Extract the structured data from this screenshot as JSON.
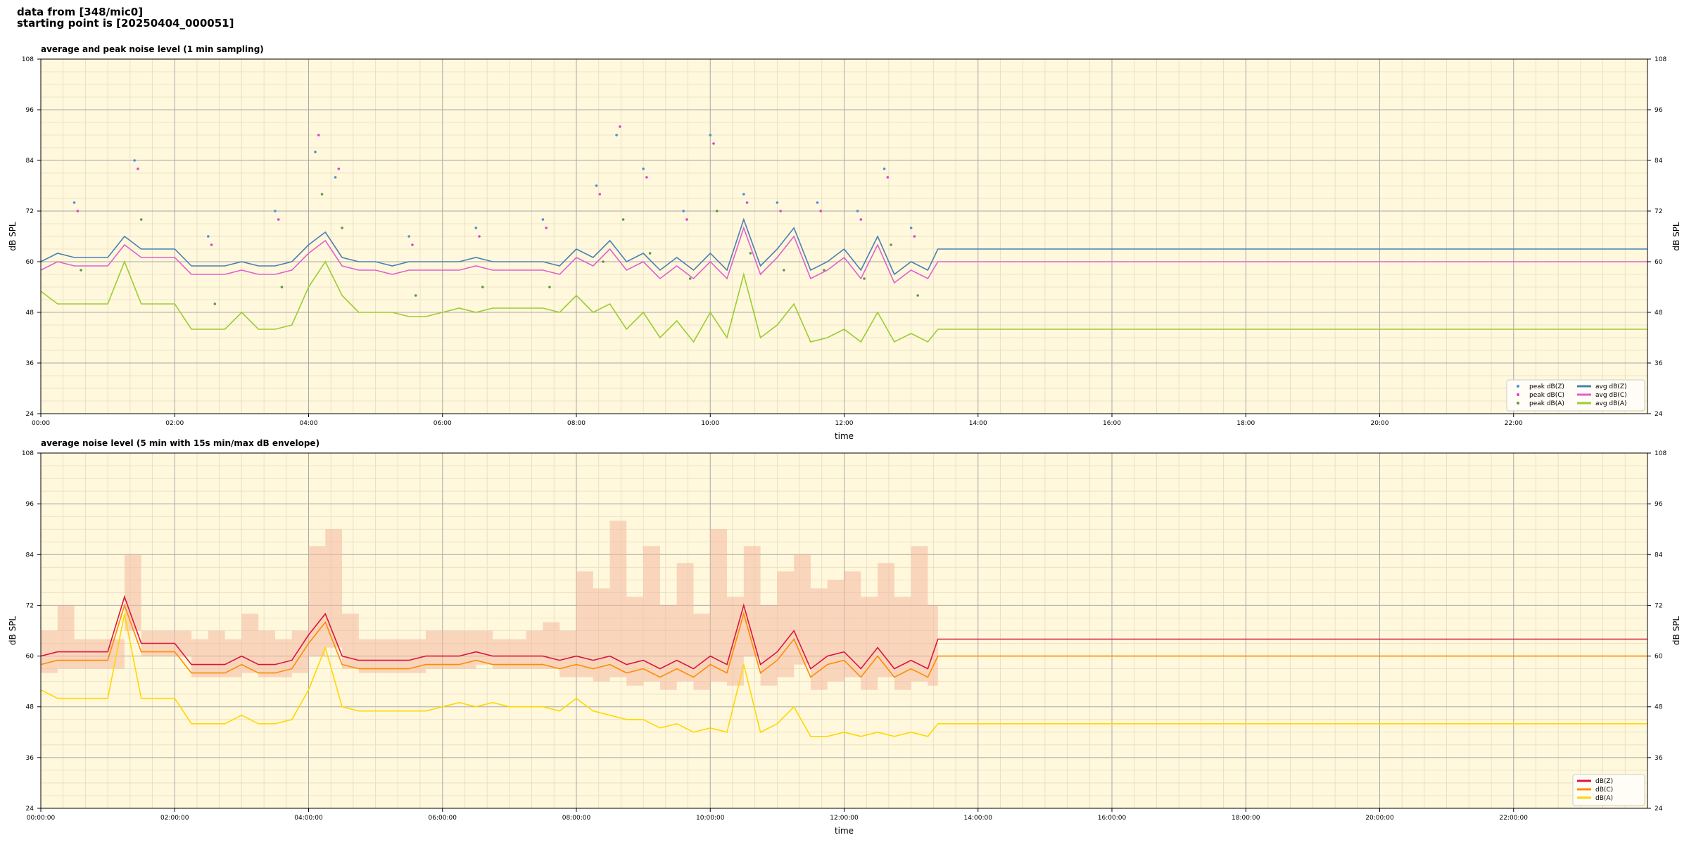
{
  "header": {
    "lines": [
      "data from [348/mic0]",
      "starting point is [20250404_000051]"
    ]
  },
  "chart_data": [
    {
      "type": "line",
      "title": "average and peak noise level (1 min sampling)",
      "x_label": "time",
      "y_label": "dB SPL",
      "y2_label": "dB SPL",
      "background": "#fff8dc",
      "grid": true,
      "minor_grid": true,
      "legend": "lower right",
      "legend_columns": 2,
      "xlim": [
        0,
        24
      ],
      "ylim": [
        24,
        108
      ],
      "y2lim": [
        24,
        108
      ],
      "xticks": [
        {
          "value": 0,
          "label": "00:00"
        },
        {
          "value": 2,
          "label": "02:00"
        },
        {
          "value": 4,
          "label": "04:00"
        },
        {
          "value": 6,
          "label": "06:00"
        },
        {
          "value": 8,
          "label": "08:00"
        },
        {
          "value": 10,
          "label": "10:00"
        },
        {
          "value": 12,
          "label": "12:00"
        },
        {
          "value": 14,
          "label": "14:00"
        },
        {
          "value": 16,
          "label": "16:00"
        },
        {
          "value": 18,
          "label": "18:00"
        },
        {
          "value": 20,
          "label": "20:00"
        },
        {
          "value": 22,
          "label": "22:00"
        }
      ],
      "yticks": [
        24,
        36,
        48,
        60,
        72,
        84,
        96,
        108
      ],
      "y2ticks": [
        24,
        36,
        48,
        60,
        72,
        84,
        96,
        108
      ],
      "x": [
        0,
        0.25,
        0.5,
        0.75,
        1,
        1.25,
        1.5,
        1.75,
        2,
        2.25,
        2.5,
        2.75,
        3,
        3.25,
        3.5,
        3.75,
        4,
        4.25,
        4.5,
        4.75,
        5,
        5.25,
        5.5,
        5.75,
        6,
        6.25,
        6.5,
        6.75,
        7,
        7.25,
        7.5,
        7.75,
        8,
        8.25,
        8.5,
        8.75,
        9,
        9.25,
        9.5,
        9.75,
        10,
        10.25,
        10.5,
        10.75,
        11,
        11.25,
        11.5,
        11.75,
        12,
        12.25,
        12.5,
        12.75,
        13,
        13.25,
        13.4,
        24
      ],
      "series": [
        {
          "name": "peak dB(Z)",
          "color": "#4a90d9",
          "style": "points",
          "x": [
            0.5,
            1.4,
            2.5,
            3.5,
            4.1,
            4.4,
            5.5,
            6.5,
            7.5,
            8.3,
            8.6,
            9.0,
            9.6,
            10.0,
            10.5,
            11.0,
            11.6,
            12.2,
            12.6,
            13.0
          ],
          "values": [
            74,
            84,
            66,
            72,
            86,
            80,
            66,
            68,
            70,
            78,
            90,
            82,
            72,
            90,
            76,
            74,
            74,
            72,
            82,
            68
          ]
        },
        {
          "name": "peak dB(C)",
          "color": "#e040d0",
          "style": "points",
          "x": [
            0.55,
            1.45,
            2.55,
            3.55,
            4.15,
            4.45,
            5.55,
            6.55,
            7.55,
            8.35,
            8.65,
            9.05,
            9.65,
            10.05,
            10.55,
            11.05,
            11.65,
            12.25,
            12.65,
            13.05
          ],
          "values": [
            72,
            82,
            64,
            70,
            90,
            82,
            64,
            66,
            68,
            76,
            92,
            80,
            70,
            88,
            74,
            72,
            72,
            70,
            80,
            66
          ]
        },
        {
          "name": "peak dB(A)",
          "color": "#5a9a40",
          "style": "points",
          "x": [
            0.6,
            1.5,
            2.6,
            3.6,
            4.2,
            4.5,
            5.6,
            6.6,
            7.6,
            8.4,
            8.7,
            9.1,
            9.7,
            10.1,
            10.6,
            11.1,
            11.7,
            12.3,
            12.7,
            13.1
          ],
          "values": [
            58,
            70,
            50,
            54,
            76,
            68,
            52,
            54,
            54,
            60,
            70,
            62,
            56,
            72,
            62,
            58,
            58,
            56,
            64,
            52
          ]
        },
        {
          "name": "avg dB(Z)",
          "color": "#4a7fb5",
          "style": "line",
          "values": [
            60,
            62,
            61,
            61,
            61,
            66,
            63,
            63,
            63,
            59,
            59,
            59,
            60,
            59,
            59,
            60,
            64,
            67,
            61,
            60,
            60,
            59,
            60,
            60,
            60,
            60,
            61,
            60,
            60,
            60,
            60,
            59,
            63,
            61,
            65,
            60,
            62,
            58,
            61,
            58,
            62,
            58,
            70,
            59,
            63,
            68,
            58,
            60,
            63,
            58,
            66,
            57,
            60,
            58,
            63,
            63
          ]
        },
        {
          "name": "avg dB(C)",
          "color": "#e060d0",
          "style": "line",
          "values": [
            58,
            60,
            59,
            59,
            59,
            64,
            61,
            61,
            61,
            57,
            57,
            57,
            58,
            57,
            57,
            58,
            62,
            65,
            59,
            58,
            58,
            57,
            58,
            58,
            58,
            58,
            59,
            58,
            58,
            58,
            58,
            57,
            61,
            59,
            63,
            58,
            60,
            56,
            59,
            56,
            60,
            56,
            68,
            57,
            61,
            66,
            56,
            58,
            61,
            56,
            64,
            55,
            58,
            56,
            60,
            60
          ]
        },
        {
          "name": "avg dB(A)",
          "color": "#9acd32",
          "style": "line",
          "values": [
            53,
            50,
            50,
            50,
            50,
            60,
            50,
            50,
            50,
            44,
            44,
            44,
            48,
            44,
            44,
            45,
            54,
            60,
            52,
            48,
            48,
            48,
            47,
            47,
            48,
            49,
            48,
            49,
            49,
            49,
            49,
            48,
            52,
            48,
            50,
            44,
            48,
            42,
            46,
            41,
            48,
            42,
            57,
            42,
            45,
            50,
            41,
            42,
            44,
            41,
            48,
            41,
            43,
            41,
            44,
            44
          ]
        }
      ]
    },
    {
      "type": "line",
      "title": "average noise level (5 min with 15s min/max dB envelope)",
      "x_label": "time",
      "y_label": "dB SPL",
      "y2_label": "dB SPL",
      "background": "#fff8dc",
      "grid": true,
      "minor_grid": true,
      "legend": "lower right",
      "legend_columns": 1,
      "xlim": [
        0,
        24
      ],
      "ylim": [
        24,
        108
      ],
      "y2lim": [
        24,
        108
      ],
      "xticks": [
        {
          "value": 0,
          "label": "00:00:00"
        },
        {
          "value": 2,
          "label": "02:00:00"
        },
        {
          "value": 4,
          "label": "04:00:00"
        },
        {
          "value": 6,
          "label": "06:00:00"
        },
        {
          "value": 8,
          "label": "08:00:00"
        },
        {
          "value": 10,
          "label": "10:00:00"
        },
        {
          "value": 12,
          "label": "12:00:00"
        },
        {
          "value": 14,
          "label": "14:00:00"
        },
        {
          "value": 16,
          "label": "16:00:00"
        },
        {
          "value": 18,
          "label": "18:00:00"
        },
        {
          "value": 20,
          "label": "20:00:00"
        },
        {
          "value": 22,
          "label": "22:00:00"
        }
      ],
      "yticks": [
        24,
        36,
        48,
        60,
        72,
        84,
        96,
        108
      ],
      "y2ticks": [
        24,
        36,
        48,
        60,
        72,
        84,
        96,
        108
      ],
      "x": [
        0,
        0.25,
        0.5,
        0.75,
        1,
        1.25,
        1.5,
        1.75,
        2,
        2.25,
        2.5,
        2.75,
        3,
        3.25,
        3.5,
        3.75,
        4,
        4.25,
        4.5,
        4.75,
        5,
        5.25,
        5.5,
        5.75,
        6,
        6.25,
        6.5,
        6.75,
        7,
        7.25,
        7.5,
        7.75,
        8,
        8.25,
        8.5,
        8.75,
        9,
        9.25,
        9.5,
        9.75,
        10,
        10.25,
        10.5,
        10.75,
        11,
        11.25,
        11.5,
        11.75,
        12,
        12.25,
        12.5,
        12.75,
        13,
        13.25,
        13.4,
        24
      ],
      "envelope": {
        "color": "#f4b8a0",
        "low": [
          56,
          57,
          57,
          57,
          57,
          66,
          60,
          60,
          60,
          55,
          55,
          55,
          56,
          55,
          55,
          56,
          60,
          62,
          57,
          56,
          56,
          56,
          56,
          57,
          57,
          57,
          58,
          57,
          57,
          57,
          57,
          55,
          55,
          54,
          55,
          53,
          54,
          52,
          54,
          52,
          54,
          53,
          60,
          53,
          55,
          58,
          52,
          54,
          55,
          52,
          55,
          52,
          54,
          53,
          null,
          null
        ],
        "high": [
          66,
          72,
          64,
          64,
          64,
          84,
          66,
          66,
          66,
          64,
          66,
          64,
          70,
          66,
          64,
          66,
          86,
          90,
          70,
          64,
          64,
          64,
          64,
          66,
          66,
          66,
          66,
          64,
          64,
          66,
          68,
          66,
          80,
          76,
          92,
          74,
          86,
          72,
          82,
          70,
          90,
          74,
          86,
          72,
          80,
          84,
          76,
          78,
          80,
          74,
          82,
          74,
          86,
          72,
          null,
          null
        ]
      },
      "series": [
        {
          "name": "dB(Z)",
          "color": "#dc143c",
          "style": "line",
          "values": [
            60,
            61,
            61,
            61,
            61,
            74,
            63,
            63,
            63,
            58,
            58,
            58,
            60,
            58,
            58,
            59,
            65,
            70,
            60,
            59,
            59,
            59,
            59,
            60,
            60,
            60,
            61,
            60,
            60,
            60,
            60,
            59,
            60,
            59,
            60,
            58,
            59,
            57,
            59,
            57,
            60,
            58,
            72,
            58,
            61,
            66,
            57,
            60,
            61,
            57,
            62,
            57,
            59,
            57,
            64,
            64
          ]
        },
        {
          "name": "dB(C)",
          "color": "#ff8c00",
          "style": "line",
          "values": [
            58,
            59,
            59,
            59,
            59,
            72,
            61,
            61,
            61,
            56,
            56,
            56,
            58,
            56,
            56,
            57,
            63,
            68,
            58,
            57,
            57,
            57,
            57,
            58,
            58,
            58,
            59,
            58,
            58,
            58,
            58,
            57,
            58,
            57,
            58,
            56,
            57,
            55,
            57,
            55,
            58,
            56,
            70,
            56,
            59,
            64,
            55,
            58,
            59,
            55,
            60,
            55,
            57,
            55,
            60,
            60
          ]
        },
        {
          "name": "dB(A)",
          "color": "#ffd700",
          "style": "line",
          "values": [
            52,
            50,
            50,
            50,
            50,
            70,
            50,
            50,
            50,
            44,
            44,
            44,
            46,
            44,
            44,
            45,
            52,
            62,
            48,
            47,
            47,
            47,
            47,
            47,
            48,
            49,
            48,
            49,
            48,
            48,
            48,
            47,
            50,
            47,
            46,
            45,
            45,
            43,
            44,
            42,
            43,
            42,
            58,
            42,
            44,
            48,
            41,
            41,
            42,
            41,
            42,
            41,
            42,
            41,
            44,
            44
          ]
        }
      ]
    }
  ]
}
